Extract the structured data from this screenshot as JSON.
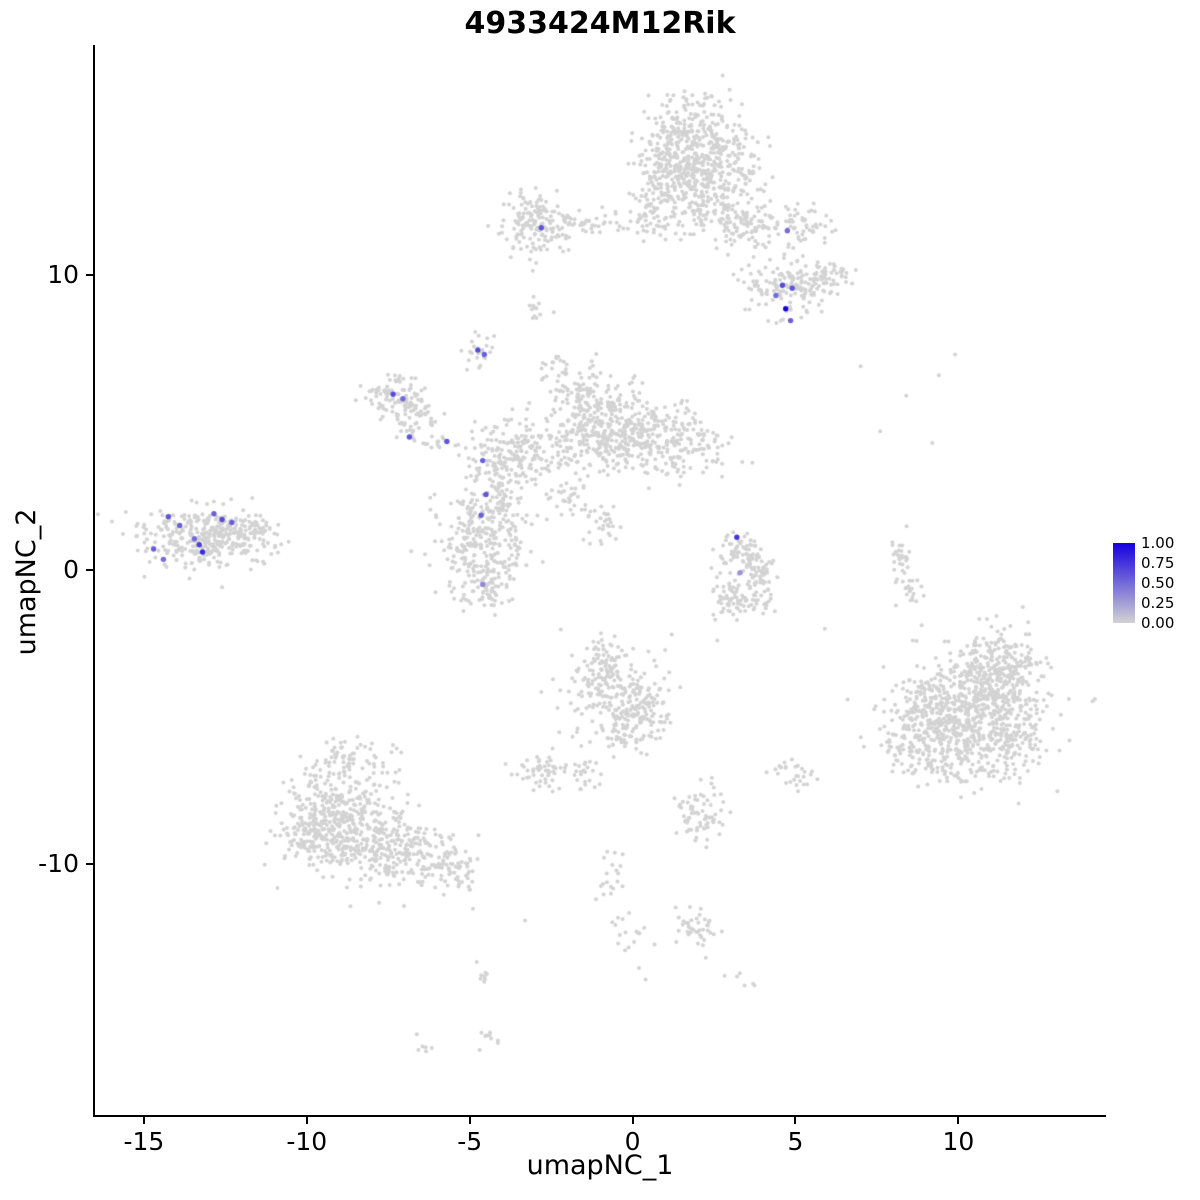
{
  "chart_data": {
    "type": "scatter",
    "title": "4933424M12Rik",
    "xlabel": "umapNC_1",
    "ylabel": "umapNC_2",
    "xlim": [
      -16.5,
      14.5
    ],
    "ylim": [
      -18.5,
      17.8
    ],
    "x_ticks": [
      -15,
      -10,
      -5,
      0,
      5,
      10
    ],
    "y_ticks": [
      -10,
      0,
      10
    ],
    "grid": false,
    "legend_position": "right",
    "colors": {
      "low": "#d3d3d3",
      "high": "#1500e0"
    },
    "legend": {
      "ticks": [
        "1.00",
        "0.75",
        "0.50",
        "0.25",
        "0.00"
      ]
    },
    "seed": 42,
    "background_clusters": [
      {
        "cx": 1.8,
        "cy": 14.6,
        "sx": 0.85,
        "sy": 0.75,
        "n": 320
      },
      {
        "cx": 1.3,
        "cy": 13.4,
        "sx": 0.6,
        "sy": 0.6,
        "n": 150
      },
      {
        "cx": 2.4,
        "cy": 12.4,
        "sx": 0.7,
        "sy": 0.55,
        "n": 130
      },
      {
        "cx": 3.4,
        "cy": 11.6,
        "sx": 0.55,
        "sy": 0.45,
        "n": 80
      },
      {
        "cx": 0.7,
        "cy": 12.3,
        "sx": 0.35,
        "sy": 0.7,
        "n": 60
      },
      {
        "cx": 2.9,
        "cy": 13.6,
        "sx": 0.5,
        "sy": 0.5,
        "n": 80
      },
      {
        "cx": 5.2,
        "cy": 11.7,
        "sx": 0.5,
        "sy": 0.4,
        "n": 60
      },
      {
        "cx": -2.95,
        "cy": 11.8,
        "sx": 0.5,
        "sy": 0.5,
        "n": 140
      },
      {
        "cx": -1.2,
        "cy": 11.8,
        "sx": 1.2,
        "sy": 0.22,
        "n": 55
      },
      {
        "cx": -2.95,
        "cy": 10.7,
        "sx": 0.15,
        "sy": 0.35,
        "n": 12
      },
      {
        "cx": -2.95,
        "cy": 8.7,
        "sx": 0.18,
        "sy": 0.25,
        "n": 12
      },
      {
        "cx": 4.8,
        "cy": 9.6,
        "sx": 0.7,
        "sy": 0.5,
        "n": 150
      },
      {
        "cx": 6.0,
        "cy": 9.9,
        "sx": 0.4,
        "sy": 0.3,
        "n": 40
      },
      {
        "cx": -4.65,
        "cy": 7.4,
        "sx": 0.22,
        "sy": 0.28,
        "n": 25
      },
      {
        "cx": -7.25,
        "cy": 5.85,
        "sx": 0.5,
        "sy": 0.38,
        "n": 110
      },
      {
        "cx": -6.7,
        "cy": 5.0,
        "sx": 0.3,
        "sy": 0.3,
        "n": 35
      },
      {
        "cx": -5.9,
        "cy": 4.35,
        "sx": 0.3,
        "sy": 0.12,
        "n": 12
      },
      {
        "cx": -0.7,
        "cy": 4.7,
        "sx": 1.0,
        "sy": 0.65,
        "n": 420
      },
      {
        "cx": 1.4,
        "cy": 4.3,
        "sx": 0.8,
        "sy": 0.5,
        "n": 150
      },
      {
        "cx": -3.7,
        "cy": 3.9,
        "sx": 0.75,
        "sy": 0.6,
        "n": 190
      },
      {
        "cx": -1.4,
        "cy": 6.1,
        "sx": 0.5,
        "sy": 0.4,
        "n": 70
      },
      {
        "cx": -2.4,
        "cy": 6.9,
        "sx": 0.3,
        "sy": 0.25,
        "n": 20
      },
      {
        "cx": -4.0,
        "cy": 2.6,
        "sx": 0.3,
        "sy": 0.5,
        "n": 50
      },
      {
        "cx": -2.0,
        "cy": 2.4,
        "sx": 0.35,
        "sy": 0.35,
        "n": 30
      },
      {
        "cx": -1.0,
        "cy": 1.6,
        "sx": 0.4,
        "sy": 0.3,
        "n": 30
      },
      {
        "cx": -4.6,
        "cy": 1.0,
        "sx": 0.7,
        "sy": 0.9,
        "n": 280
      },
      {
        "cx": -4.4,
        "cy": -0.5,
        "sx": 0.4,
        "sy": 0.4,
        "n": 60
      },
      {
        "cx": -13.2,
        "cy": 1.1,
        "sx": 0.95,
        "sy": 0.5,
        "n": 330
      },
      {
        "cx": -11.8,
        "cy": 1.3,
        "sx": 0.4,
        "sy": 0.35,
        "n": 60
      },
      {
        "cx": 3.2,
        "cy": 0.6,
        "sx": 0.3,
        "sy": 0.35,
        "n": 45
      },
      {
        "cx": 3.8,
        "cy": 0.3,
        "sx": 0.28,
        "sy": 0.3,
        "n": 40
      },
      {
        "cx": 4.0,
        "cy": -0.5,
        "sx": 0.28,
        "sy": 0.35,
        "n": 45
      },
      {
        "cx": 3.4,
        "cy": -1.2,
        "sx": 0.4,
        "sy": 0.25,
        "n": 45
      },
      {
        "cx": 2.8,
        "cy": -0.7,
        "sx": 0.22,
        "sy": 0.3,
        "n": 30
      },
      {
        "cx": 8.2,
        "cy": 0.4,
        "sx": 0.15,
        "sy": 0.45,
        "n": 30
      },
      {
        "cx": 8.5,
        "cy": -0.7,
        "sx": 0.18,
        "sy": 0.3,
        "n": 18
      },
      {
        "cx": 10.4,
        "cy": -4.6,
        "sx": 1.1,
        "sy": 1.0,
        "n": 420
      },
      {
        "cx": 11.2,
        "cy": -4.0,
        "sx": 0.7,
        "sy": 0.7,
        "n": 200
      },
      {
        "cx": 11.3,
        "cy": -3.0,
        "sx": 0.6,
        "sy": 0.5,
        "n": 90
      },
      {
        "cx": 10.0,
        "cy": -6.2,
        "sx": 0.9,
        "sy": 0.6,
        "n": 180
      },
      {
        "cx": 9.1,
        "cy": -4.7,
        "sx": 0.55,
        "sy": 0.6,
        "n": 110
      },
      {
        "cx": 8.4,
        "cy": -5.8,
        "sx": 0.4,
        "sy": 0.5,
        "n": 50
      },
      {
        "cx": 11.6,
        "cy": -5.8,
        "sx": 0.5,
        "sy": 0.5,
        "n": 80
      },
      {
        "cx": -9.0,
        "cy": -8.2,
        "sx": 0.85,
        "sy": 0.75,
        "n": 240
      },
      {
        "cx": -8.1,
        "cy": -9.3,
        "sx": 0.9,
        "sy": 0.7,
        "n": 230
      },
      {
        "cx": -9.9,
        "cy": -9.0,
        "sx": 0.55,
        "sy": 0.55,
        "n": 110
      },
      {
        "cx": -8.6,
        "cy": -6.6,
        "sx": 0.6,
        "sy": 0.5,
        "n": 80
      },
      {
        "cx": -6.6,
        "cy": -9.7,
        "sx": 0.8,
        "sy": 0.5,
        "n": 120
      },
      {
        "cx": -5.4,
        "cy": -10.3,
        "sx": 0.5,
        "sy": 0.35,
        "n": 50
      },
      {
        "cx": -0.6,
        "cy": -4.0,
        "sx": 0.75,
        "sy": 0.65,
        "n": 190
      },
      {
        "cx": 0.3,
        "cy": -4.9,
        "sx": 0.5,
        "sy": 0.45,
        "n": 80
      },
      {
        "cx": -0.3,
        "cy": -5.6,
        "sx": 0.4,
        "sy": 0.35,
        "n": 50
      },
      {
        "cx": -0.9,
        "cy": -2.9,
        "sx": 0.3,
        "sy": 0.3,
        "n": 35
      },
      {
        "cx": -1.5,
        "cy": -7.0,
        "sx": 0.22,
        "sy": 0.5,
        "n": 25
      },
      {
        "cx": -2.8,
        "cy": -6.8,
        "sx": 0.32,
        "sy": 0.32,
        "n": 55
      },
      {
        "cx": 5.0,
        "cy": -7.0,
        "sx": 0.3,
        "sy": 0.3,
        "n": 28
      },
      {
        "cx": 2.1,
        "cy": -8.3,
        "sx": 0.4,
        "sy": 0.45,
        "n": 70
      },
      {
        "cx": -0.7,
        "cy": -10.4,
        "sx": 0.28,
        "sy": 0.7,
        "n": 22
      },
      {
        "cx": 0.0,
        "cy": -12.4,
        "sx": 0.3,
        "sy": 0.35,
        "n": 14
      },
      {
        "cx": 2.0,
        "cy": -12.2,
        "sx": 0.32,
        "sy": 0.38,
        "n": 40
      },
      {
        "cx": -4.6,
        "cy": -13.6,
        "sx": 0.18,
        "sy": 0.18,
        "n": 8
      },
      {
        "cx": -4.4,
        "cy": -15.9,
        "sx": 0.22,
        "sy": 0.18,
        "n": 10
      },
      {
        "cx": -6.35,
        "cy": -16.1,
        "sx": 0.15,
        "sy": 0.15,
        "n": 6
      },
      {
        "cx": 3.2,
        "cy": -13.9,
        "sx": 0.2,
        "sy": 0.15,
        "n": 6
      }
    ],
    "outlier_points": [
      [
        7.0,
        6.9
      ],
      [
        9.4,
        6.6
      ],
      [
        9.9,
        7.3
      ],
      [
        8.4,
        5.9
      ],
      [
        7.6,
        4.7
      ],
      [
        9.2,
        4.3
      ],
      [
        6.6,
        -4.4
      ],
      [
        7.7,
        -3.3
      ],
      [
        8.6,
        -2.4
      ],
      [
        5.9,
        -2.0
      ],
      [
        1.2,
        -2.2
      ],
      [
        2.6,
        -2.4
      ],
      [
        -8.0,
        -5.9
      ],
      [
        -7.1,
        -6.2
      ],
      [
        -3.3,
        -11.9
      ],
      [
        0.4,
        -13.9
      ],
      [
        -10.9,
        -10.8
      ],
      [
        -4.9,
        -11.5
      ],
      [
        -13.6,
        -0.3
      ],
      [
        -12.6,
        -0.6
      ],
      [
        -11.3,
        0.2
      ],
      [
        12.7,
        -3.0
      ],
      [
        12.9,
        -5.4
      ]
    ],
    "expressing_points": [
      {
        "x": -14.7,
        "y": 0.7,
        "value": 0.55
      },
      {
        "x": -14.4,
        "y": 0.35,
        "value": 0.5
      },
      {
        "x": -14.25,
        "y": 1.8,
        "value": 0.6
      },
      {
        "x": -13.9,
        "y": 1.5,
        "value": 0.55
      },
      {
        "x": -13.45,
        "y": 1.05,
        "value": 0.5
      },
      {
        "x": -13.3,
        "y": 0.85,
        "value": 0.7
      },
      {
        "x": -13.2,
        "y": 0.6,
        "value": 0.8
      },
      {
        "x": -12.85,
        "y": 1.9,
        "value": 0.55
      },
      {
        "x": -12.6,
        "y": 1.7,
        "value": 0.65
      },
      {
        "x": -12.3,
        "y": 1.6,
        "value": 0.55
      },
      {
        "x": -2.8,
        "y": 11.6,
        "value": 0.6
      },
      {
        "x": 4.75,
        "y": 11.5,
        "value": 0.5
      },
      {
        "x": 4.6,
        "y": 9.65,
        "value": 0.65
      },
      {
        "x": 4.9,
        "y": 9.55,
        "value": 0.6
      },
      {
        "x": 4.4,
        "y": 9.3,
        "value": 0.5
      },
      {
        "x": 4.7,
        "y": 8.85,
        "value": 1.0
      },
      {
        "x": 4.85,
        "y": 8.45,
        "value": 0.55
      },
      {
        "x": -4.75,
        "y": 7.45,
        "value": 0.65
      },
      {
        "x": -4.55,
        "y": 7.3,
        "value": 0.55
      },
      {
        "x": -7.35,
        "y": 5.95,
        "value": 0.65
      },
      {
        "x": -7.05,
        "y": 5.8,
        "value": 0.5
      },
      {
        "x": -6.85,
        "y": 4.5,
        "value": 0.6
      },
      {
        "x": -5.7,
        "y": 4.35,
        "value": 0.6
      },
      {
        "x": -4.6,
        "y": 3.7,
        "value": 0.55
      },
      {
        "x": -4.5,
        "y": 2.55,
        "value": 0.6
      },
      {
        "x": -4.65,
        "y": 1.85,
        "value": 0.55
      },
      {
        "x": -4.6,
        "y": -0.5,
        "value": 0.35
      },
      {
        "x": 3.2,
        "y": 1.1,
        "value": 0.75
      },
      {
        "x": 3.3,
        "y": -0.1,
        "value": 0.3
      }
    ]
  }
}
